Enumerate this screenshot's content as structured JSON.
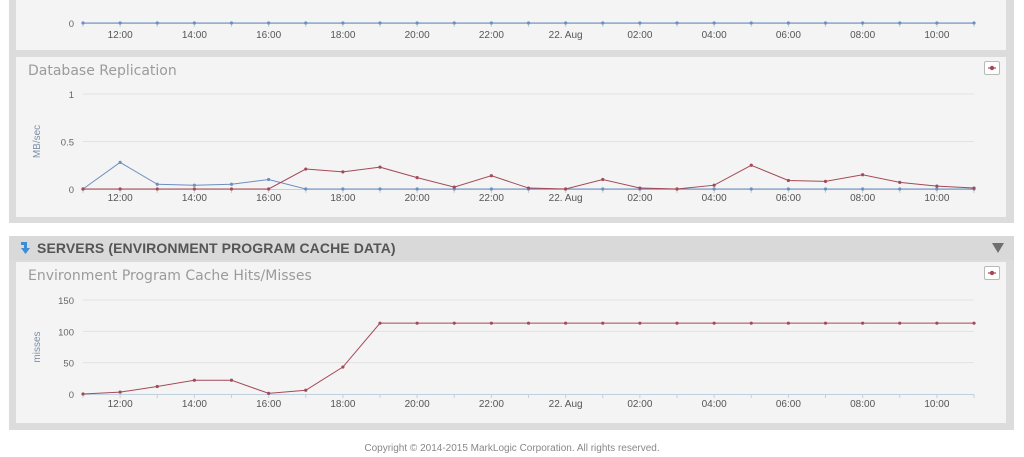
{
  "chart_data": [
    {
      "type": "line",
      "title": "",
      "ylabel": "",
      "x": [
        "11:00",
        "12:00",
        "13:00",
        "14:00",
        "15:00",
        "16:00",
        "17:00",
        "18:00",
        "19:00",
        "20:00",
        "21:00",
        "22:00",
        "23:00",
        "22. Aug",
        "01:00",
        "02:00",
        "03:00",
        "04:00",
        "05:00",
        "06:00",
        "07:00",
        "08:00",
        "09:00",
        "10:00",
        "11:00"
      ],
      "x_tick_labels": [
        "12:00",
        "14:00",
        "16:00",
        "18:00",
        "20:00",
        "22:00",
        "22. Aug",
        "02:00",
        "04:00",
        "06:00",
        "08:00",
        "10:00"
      ],
      "y_tick_labels": [
        "0"
      ],
      "series": [
        {
          "color": "#6b8fbf",
          "values": [
            0,
            0,
            0,
            0,
            0,
            0,
            0,
            0,
            0,
            0,
            0,
            0,
            0,
            0,
            0,
            0,
            0,
            0,
            0,
            0,
            0,
            0,
            0,
            0,
            0
          ]
        }
      ]
    },
    {
      "type": "line",
      "title": "Database Replication",
      "ylabel": "MB/sec",
      "ylim": [
        0,
        1
      ],
      "y_tick_labels": [
        "0",
        "0.5",
        "1"
      ],
      "x": [
        "11:00",
        "12:00",
        "13:00",
        "14:00",
        "15:00",
        "16:00",
        "17:00",
        "18:00",
        "19:00",
        "20:00",
        "21:00",
        "22:00",
        "23:00",
        "22. Aug",
        "01:00",
        "02:00",
        "03:00",
        "04:00",
        "05:00",
        "06:00",
        "07:00",
        "08:00",
        "09:00",
        "10:00",
        "11:00"
      ],
      "x_tick_labels": [
        "12:00",
        "14:00",
        "16:00",
        "18:00",
        "20:00",
        "22:00",
        "22. Aug",
        "02:00",
        "04:00",
        "06:00",
        "08:00",
        "10:00"
      ],
      "series": [
        {
          "color": "#6b8fbf",
          "values": [
            0,
            0.28,
            0.05,
            0.04,
            0.05,
            0.1,
            0,
            0,
            0,
            0,
            0,
            0,
            0,
            0,
            0,
            0,
            0,
            0,
            0,
            0,
            0,
            0,
            0,
            0,
            0
          ]
        },
        {
          "color": "#a34a57",
          "values": [
            0,
            0,
            0,
            0,
            0,
            0,
            0.21,
            0.18,
            0.23,
            0.12,
            0.02,
            0.14,
            0.01,
            0,
            0.1,
            0.01,
            0,
            0.04,
            0.25,
            0.09,
            0.08,
            0.15,
            0.07,
            0.03,
            0.01
          ]
        }
      ]
    },
    {
      "type": "line",
      "title": "Environment Program Cache Hits/Misses",
      "ylabel": "misses",
      "ylim": [
        0,
        150
      ],
      "y_tick_labels": [
        "0",
        "50",
        "100",
        "150"
      ],
      "x": [
        "11:00",
        "12:00",
        "13:00",
        "14:00",
        "15:00",
        "16:00",
        "17:00",
        "18:00",
        "19:00",
        "20:00",
        "21:00",
        "22:00",
        "23:00",
        "22. Aug",
        "01:00",
        "02:00",
        "03:00",
        "04:00",
        "05:00",
        "06:00",
        "07:00",
        "08:00",
        "09:00",
        "10:00",
        "11:00"
      ],
      "x_tick_labels": [
        "12:00",
        "14:00",
        "16:00",
        "18:00",
        "20:00",
        "22:00",
        "22. Aug",
        "02:00",
        "04:00",
        "06:00",
        "08:00",
        "10:00"
      ],
      "series": [
        {
          "color": "#a34a57",
          "values": [
            0,
            3,
            12,
            22,
            22,
            1,
            6,
            43,
            113,
            113,
            113,
            113,
            113,
            113,
            113,
            113,
            113,
            113,
            113,
            113,
            113,
            113,
            113,
            113,
            113
          ]
        }
      ]
    }
  ],
  "section": {
    "title": "SERVERS (ENVIRONMENT PROGRAM CACHE DATA)",
    "icon": "arrow-down-icon",
    "collapse_icon": "triangle-down-icon"
  },
  "colors": {
    "accent": "#3b8fd6",
    "series_blue": "#6b8fbf",
    "series_red": "#a34a57"
  },
  "footer": {
    "text": "Copyright © 2014-2015 MarkLogic Corporation. All rights reserved."
  }
}
